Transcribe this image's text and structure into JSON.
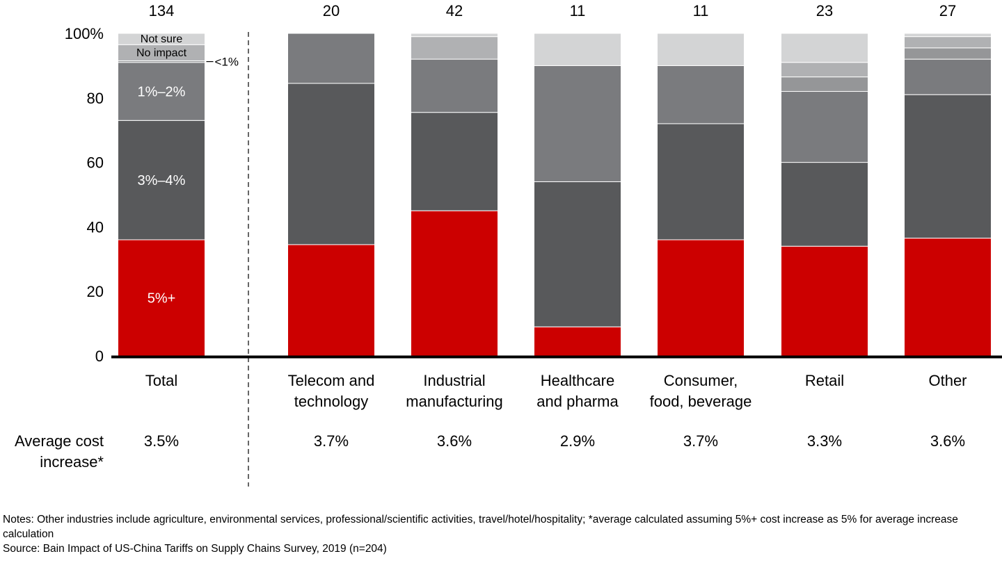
{
  "chart_data": {
    "type": "bar",
    "stacked": true,
    "title": "",
    "ylim": [
      0,
      100
    ],
    "y_ticks": [
      "0",
      "20",
      "40",
      "60",
      "80",
      "100%"
    ],
    "categories": [
      "Total",
      "Telecom and technology",
      "Industrial manufacturing",
      "Healthcare and pharma",
      "Consumer, food, beverage",
      "Retail",
      "Other"
    ],
    "category_lines": [
      [
        "Total"
      ],
      [
        "Telecom and",
        "technology"
      ],
      [
        "Industrial",
        "manufacturing"
      ],
      [
        "Healthcare",
        "and pharma"
      ],
      [
        "Consumer,",
        "food, beverage"
      ],
      [
        "Retail"
      ],
      [
        "Other"
      ]
    ],
    "respondent_counts": [
      "134",
      "20",
      "42",
      "11",
      "11",
      "23",
      "27"
    ],
    "series": [
      {
        "label": "5%+",
        "color": "#cc0000",
        "values": [
          36,
          34.5,
          45,
          9,
          36,
          34,
          36.5
        ]
      },
      {
        "label": "3%–4%",
        "color": "#58595b",
        "values": [
          37,
          50,
          30.5,
          45,
          36,
          26,
          44.5
        ]
      },
      {
        "label": "1%–2%",
        "color": "#7a7b7e",
        "values": [
          18,
          15.5,
          16.5,
          36,
          18,
          22,
          11
        ]
      },
      {
        "label": "<1%",
        "color": "#959698",
        "values": [
          0.5,
          0,
          0,
          0,
          0,
          4.5,
          3.5
        ]
      },
      {
        "label": "No impact",
        "color": "#b0b1b3",
        "values": [
          5,
          0,
          7,
          0,
          0,
          4.5,
          3.5
        ]
      },
      {
        "label": "Not sure",
        "color": "#d3d4d5",
        "values": [
          3.5,
          0,
          1,
          10,
          10,
          9,
          1
        ]
      }
    ],
    "avg_label_lines": [
      "Average cost",
      "increase*"
    ],
    "avg_values": [
      "3.5%",
      "3.7%",
      "3.6%",
      "2.9%",
      "3.7%",
      "3.3%",
      "3.6%"
    ]
  },
  "notes": {
    "line1": "Notes: Other industries include agriculture, environmental services, professional/scientific activities, travel/hotel/hospitality; *average calculated assuming 5%+ cost increase as 5% for average increase calculation",
    "line2": "Source: Bain Impact of US-China Tariffs on Supply Chains Survey, 2019 (n=204)"
  }
}
